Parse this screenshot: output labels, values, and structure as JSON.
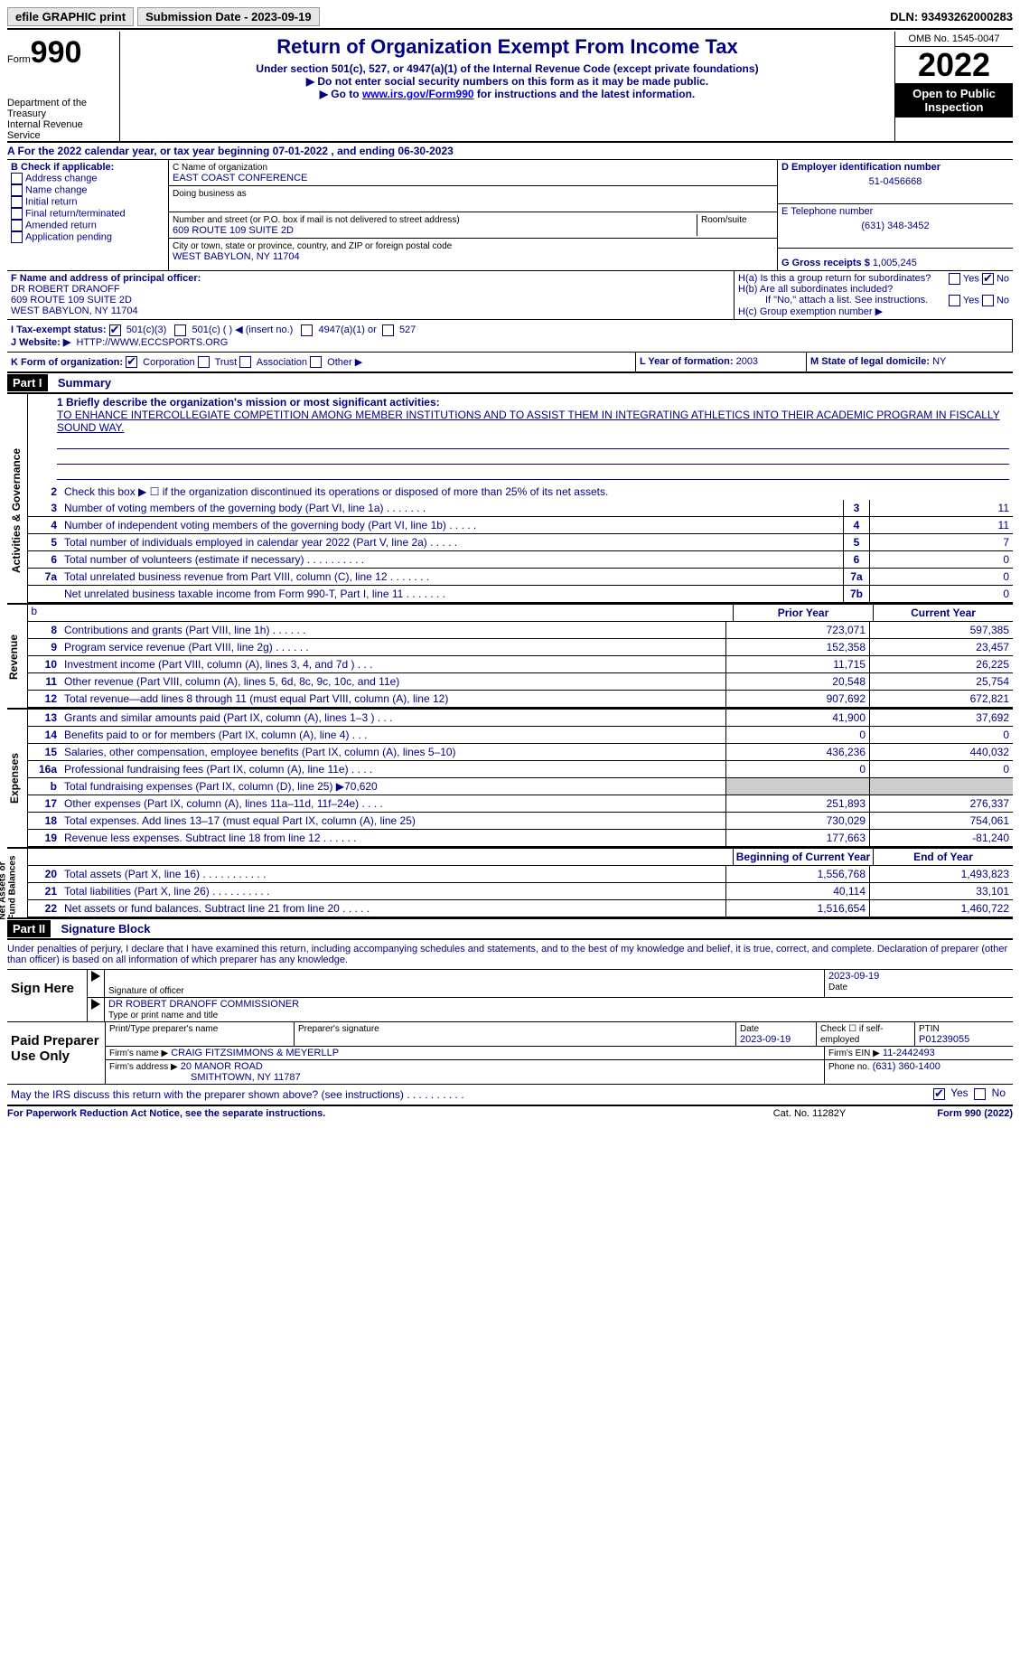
{
  "topbar": {
    "efile": "efile GRAPHIC print",
    "submission_label": "Submission Date - 2023-09-19",
    "dln": "DLN: 93493262000283"
  },
  "header": {
    "form_word": "Form",
    "form_num": "990",
    "title": "Return of Organization Exempt From Income Tax",
    "sub1": "Under section 501(c), 527, or 4947(a)(1) of the Internal Revenue Code (except private foundations)",
    "sub2": "▶ Do not enter social security numbers on this form as it may be made public.",
    "sub3_pre": "▶ Go to ",
    "sub3_link": "www.irs.gov/Form990",
    "sub3_post": " for instructions and the latest information.",
    "dept": "Department of the Treasury",
    "irs": "Internal Revenue Service",
    "omb": "OMB No. 1545-0047",
    "year": "2022",
    "open": "Open to Public Inspection"
  },
  "A": {
    "text_pre": "A For the 2022 calendar year, or tax year beginning ",
    "begin": "07-01-2022",
    "text_mid": "   , and ending ",
    "end": "06-30-2023"
  },
  "B": {
    "label": "B Check if applicable:",
    "items": [
      "Address change",
      "Name change",
      "Initial return",
      "Final return/terminated",
      "Amended return",
      "Application pending"
    ]
  },
  "C": {
    "name_lbl": "C Name of organization",
    "name": "EAST COAST CONFERENCE",
    "dba_lbl": "Doing business as",
    "addr_lbl": "Number and street (or P.O. box if mail is not delivered to street address)",
    "room_lbl": "Room/suite",
    "addr": "609 ROUTE 109 SUITE 2D",
    "city_lbl": "City or town, state or province, country, and ZIP or foreign postal code",
    "city": "WEST BABYLON, NY  11704"
  },
  "D": {
    "lbl": "D Employer identification number",
    "val": "51-0456668"
  },
  "E": {
    "lbl": "E Telephone number",
    "val": "(631) 348-3452"
  },
  "G": {
    "lbl": "G Gross receipts $",
    "val": "1,005,245"
  },
  "F": {
    "lbl": "F  Name and address of principal officer:",
    "name": "DR ROBERT DRANOFF",
    "l1": "609 ROUTE 109 SUITE 2D",
    "l2": "WEST BABYLON, NY  11704"
  },
  "H": {
    "a": "H(a)  Is this a group return for subordinates?",
    "b": "H(b)  Are all subordinates included?",
    "b_note": "If \"No,\" attach a list. See instructions.",
    "c": "H(c)  Group exemption number ▶",
    "yes": "Yes",
    "no": "No"
  },
  "I": {
    "lbl": "I   Tax-exempt status:",
    "o1": "501(c)(3)",
    "o2": "501(c) (  ) ◀ (insert no.)",
    "o3": "4947(a)(1) or",
    "o4": "527"
  },
  "J": {
    "lbl": "J   Website: ▶",
    "val": "HTTP://WWW.ECCSPORTS.ORG"
  },
  "K": {
    "lbl": "K Form of organization:",
    "o1": "Corporation",
    "o2": "Trust",
    "o3": "Association",
    "o4": "Other ▶"
  },
  "L": {
    "lbl": "L Year of formation:",
    "val": "2003"
  },
  "M": {
    "lbl": "M State of legal domicile:",
    "val": "NY"
  },
  "part1": {
    "num": "Part I",
    "title": "Summary"
  },
  "mission": {
    "lbl": "1   Briefly describe the organization's mission or most significant activities:",
    "text": "TO ENHANCE INTERCOLLEGIATE COMPETITION AMONG MEMBER INSTITUTIONS AND TO ASSIST THEM IN INTEGRATING ATHLETICS INTO THEIR ACADEMIC PROGRAM IN FISCALLY SOUND WAY."
  },
  "line2": "Check this box ▶ ☐  if the organization discontinued its operations or disposed of more than 25% of its net assets.",
  "ag_lines": [
    {
      "n": "3",
      "t": "Number of voting members of the governing body (Part VI, line 1a)   .    .    .    .    .    .    .",
      "box": "3",
      "v": "11"
    },
    {
      "n": "4",
      "t": "Number of independent voting members of the governing body (Part VI, line 1b)   .    .    .    .    .",
      "box": "4",
      "v": "11"
    },
    {
      "n": "5",
      "t": "Total number of individuals employed in calendar year 2022 (Part V, line 2a)   .    .    .    .    .",
      "box": "5",
      "v": "7"
    },
    {
      "n": "6",
      "t": "Total number of volunteers (estimate if necessary)    .    .    .    .    .    .    .    .    .    .",
      "box": "6",
      "v": "0"
    },
    {
      "n": "7a",
      "t": "Total unrelated business revenue from Part VIII, column (C), line 12   .    .    .    .    .    .    .",
      "box": "7a",
      "v": "0"
    },
    {
      "n": "",
      "t": "Net unrelated business taxable income from Form 990-T, Part I, line 11   .    .    .    .    .    .    .",
      "box": "7b",
      "v": "0"
    }
  ],
  "cols": {
    "prior": "Prior Year",
    "current": "Current Year"
  },
  "rev": [
    {
      "n": "8",
      "t": "Contributions and grants (Part VIII, line 1h)   .    .    .    .    .    .",
      "p": "723,071",
      "c": "597,385"
    },
    {
      "n": "9",
      "t": "Program service revenue (Part VIII, line 2g)   .    .    .    .    .    .",
      "p": "152,358",
      "c": "23,457"
    },
    {
      "n": "10",
      "t": "Investment income (Part VIII, column (A), lines 3, 4, and 7d )   .    .    .",
      "p": "11,715",
      "c": "26,225"
    },
    {
      "n": "11",
      "t": "Other revenue (Part VIII, column (A), lines 5, 6d, 8c, 9c, 10c, and 11e)",
      "p": "20,548",
      "c": "25,754"
    },
    {
      "n": "12",
      "t": "Total revenue—add lines 8 through 11 (must equal Part VIII, column (A), line 12)",
      "p": "907,692",
      "c": "672,821"
    }
  ],
  "exp": [
    {
      "n": "13",
      "t": "Grants and similar amounts paid (Part IX, column (A), lines 1–3 )   .    .    .",
      "p": "41,900",
      "c": "37,692"
    },
    {
      "n": "14",
      "t": "Benefits paid to or for members (Part IX, column (A), line 4)   .    .    .",
      "p": "0",
      "c": "0"
    },
    {
      "n": "15",
      "t": "Salaries, other compensation, employee benefits (Part IX, column (A), lines 5–10)",
      "p": "436,236",
      "c": "440,032"
    },
    {
      "n": "16a",
      "t": "Professional fundraising fees (Part IX, column (A), line 11e)   .    .    .    .",
      "p": "0",
      "c": "0"
    },
    {
      "n": "b",
      "t": "Total fundraising expenses (Part IX, column (D), line 25) ▶70,620",
      "p": "GREY",
      "c": "GREY"
    },
    {
      "n": "17",
      "t": "Other expenses (Part IX, column (A), lines 11a–11d, 11f–24e)   .    .    .    .",
      "p": "251,893",
      "c": "276,337"
    },
    {
      "n": "18",
      "t": "Total expenses. Add lines 13–17 (must equal Part IX, column (A), line 25)",
      "p": "730,029",
      "c": "754,061"
    },
    {
      "n": "19",
      "t": "Revenue less expenses. Subtract line 18 from line 12   .    .    .    .    .    .",
      "p": "177,663",
      "c": "-81,240"
    }
  ],
  "cols2": {
    "prior": "Beginning of Current Year",
    "current": "End of Year"
  },
  "na": [
    {
      "n": "20",
      "t": "Total assets (Part X, line 16)   .    .    .    .    .    .    .    .    .    .    .",
      "p": "1,556,768",
      "c": "1,493,823"
    },
    {
      "n": "21",
      "t": "Total liabilities (Part X, line 26)   .    .    .    .    .    .    .    .    .    .",
      "p": "40,114",
      "c": "33,101"
    },
    {
      "n": "22",
      "t": "Net assets or fund balances. Subtract line 21 from line 20   .    .    .    .    .",
      "p": "1,516,654",
      "c": "1,460,722"
    }
  ],
  "vtabs": {
    "ag": "Activities & Governance",
    "rev": "Revenue",
    "exp": "Expenses",
    "na": "Net Assets or\nFund Balances"
  },
  "part2": {
    "num": "Part II",
    "title": "Signature Block"
  },
  "sigpara": "Under penalties of perjury, I declare that I have examined this return, including accompanying schedules and statements, and to the best of my knowledge and belief, it is true, correct, and complete. Declaration of preparer (other than officer) is based on all information of which preparer has any knowledge.",
  "sign": {
    "here": "Sign Here",
    "date": "2023-09-19",
    "sig_lbl": "Signature of officer",
    "date_lbl": "Date",
    "name": "DR ROBERT DRANOFF  COMMISSIONER",
    "name_lbl": "Type or print name and title"
  },
  "prep": {
    "lab": "Paid Preparer Use Only",
    "h1": "Print/Type preparer's name",
    "h2": "Preparer's signature",
    "h3_l": "Date",
    "h3_v": "2023-09-19",
    "h4": "Check ☐ if self-employed",
    "h5_l": "PTIN",
    "h5_v": "P01239055",
    "firm_l": "Firm's name     ▶",
    "firm_v": "CRAIG FITZSIMMONS & MEYERLLP",
    "ein_l": "Firm's EIN ▶",
    "ein_v": "11-2442493",
    "addr_l": "Firm's address ▶",
    "addr_v1": "20 MANOR ROAD",
    "addr_v2": "SMITHTOWN, NY  11787",
    "phone_l": "Phone no.",
    "phone_v": "(631) 360-1400"
  },
  "discuss": "May the IRS discuss this return with the preparer shown above? (see instructions)   .    .    .    .    .    .    .    .    .    .",
  "footer": {
    "l": "For Paperwork Reduction Act Notice, see the separate instructions.",
    "m": "Cat. No. 11282Y",
    "r": "Form 990 (2022)"
  }
}
